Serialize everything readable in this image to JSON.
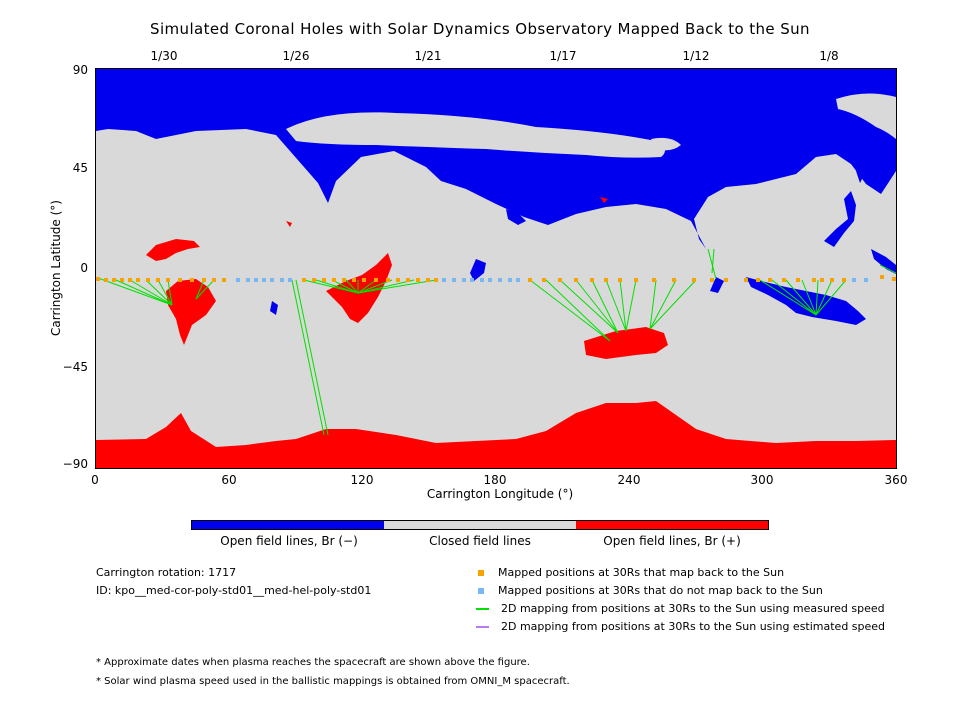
{
  "title": "Simulated Coronal Holes with Solar Dynamics Observatory Mapped Back to the Sun",
  "date_labels": [
    "1/30",
    "1/26",
    "1/21",
    "1/17",
    "1/12",
    "1/8"
  ],
  "x_axis": {
    "label": "Carrington Longitude (°)",
    "ticks": [
      "0",
      "60",
      "120",
      "180",
      "240",
      "300",
      "360"
    ],
    "range": [
      0,
      360
    ]
  },
  "y_axis": {
    "label": "Carrington Latitude (°)",
    "ticks": [
      "90",
      "45",
      "0",
      "−45",
      "−90"
    ],
    "range": [
      -90,
      90
    ]
  },
  "colorbar": {
    "labels": [
      "Open field lines, Br (−)",
      "Closed field lines",
      "Open field lines, Br (+)"
    ],
    "colors": [
      "#0000ee",
      "#d9d9d9",
      "#ff0000"
    ]
  },
  "info": {
    "rotation": "Carrington rotation: 1717",
    "id": "ID: kpo__med-cor-poly-std01__med-hel-poly-std01"
  },
  "legend": [
    {
      "label": "Mapped positions at 30Rs that map back to the Sun",
      "color": "#f5a300",
      "icon": "orange-square"
    },
    {
      "label": "Mapped positions at 30Rs that do not map back to the Sun",
      "color": "#7ab8f5",
      "icon": "light-blue-square"
    },
    {
      "label": "2D mapping from positions at 30Rs to the Sun using measured speed",
      "color": "#00e000",
      "icon": "green-line"
    },
    {
      "label": "2D mapping from positions at 30Rs to the Sun using estimated speed",
      "color": "#b57cf0",
      "icon": "violet-line"
    }
  ],
  "notes": [
    "* Approximate dates when plasma reaches the spacecraft are shown above the figure.",
    "* Solar wind plasma speed used in the ballistic mappings is obtained from OMNI_M spacecraft."
  ],
  "colors": {
    "open_negative": "#0000ee",
    "closed": "#d9d9d9",
    "open_positive": "#ff0000",
    "mapped": "#f5a300",
    "not_mapped": "#7ab8f5",
    "measured_speed": "#00e000",
    "estimated_speed": "#b57cf0"
  }
}
